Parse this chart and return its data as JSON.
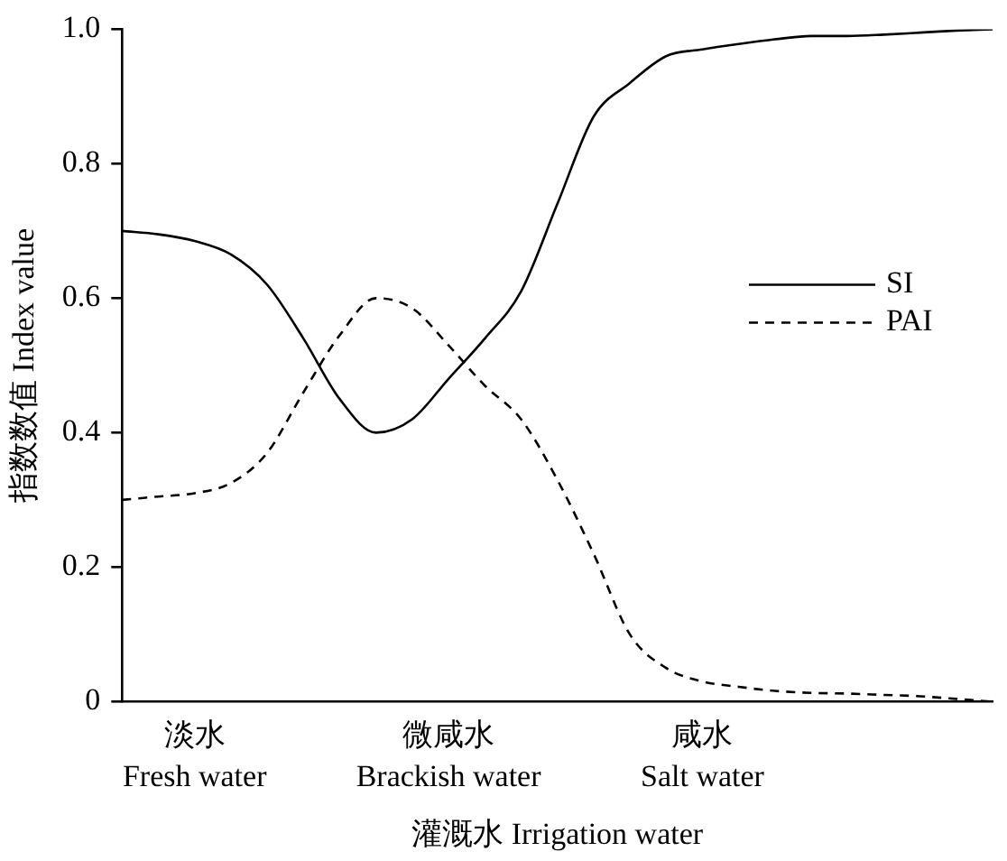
{
  "chart_data": {
    "type": "line",
    "xlabel": "灌溉水 Irrigation water",
    "ylabel": "指数数值 Index value",
    "categories": [
      null,
      null,
      "淡水\nFresh water",
      null,
      null,
      null,
      null,
      null,
      null,
      "微咸水\nBrackish water",
      null,
      null,
      null,
      null,
      null,
      null,
      "咸水\nSalt water",
      null,
      null,
      null,
      null,
      null,
      null,
      null,
      null
    ],
    "series": [
      {
        "name": "SI",
        "color": "#000000",
        "line_style": "solid",
        "values": [
          0.7,
          0.695,
          0.685,
          0.665,
          0.62,
          0.54,
          0.45,
          0.4,
          0.42,
          0.48,
          0.54,
          0.61,
          0.74,
          0.87,
          0.92,
          0.96,
          0.97,
          0.978,
          0.985,
          0.99,
          0.99,
          0.992,
          0.995,
          0.998,
          1.0
        ]
      },
      {
        "name": "PAI",
        "color": "#000000",
        "line_style": "dashed",
        "values": [
          0.3,
          0.305,
          0.31,
          0.325,
          0.37,
          0.46,
          0.545,
          0.6,
          0.585,
          0.53,
          0.47,
          0.42,
          0.33,
          0.22,
          0.1,
          0.05,
          0.03,
          0.022,
          0.016,
          0.013,
          0.012,
          0.01,
          0.008,
          0.004,
          0
        ]
      }
    ],
    "ylim": [
      0,
      1
    ],
    "yticks": [
      0,
      {
        "value": 0.2,
        "label": "0.2"
      },
      {
        "value": 0.4,
        "label": "0.4"
      },
      {
        "value": 0.6,
        "label": "0.6"
      },
      {
        "value": 0.8,
        "label": "0.8"
      },
      {
        "value": 1,
        "label": "1.0"
      }
    ],
    "grid": false,
    "legend": "right",
    "marker": "none"
  }
}
